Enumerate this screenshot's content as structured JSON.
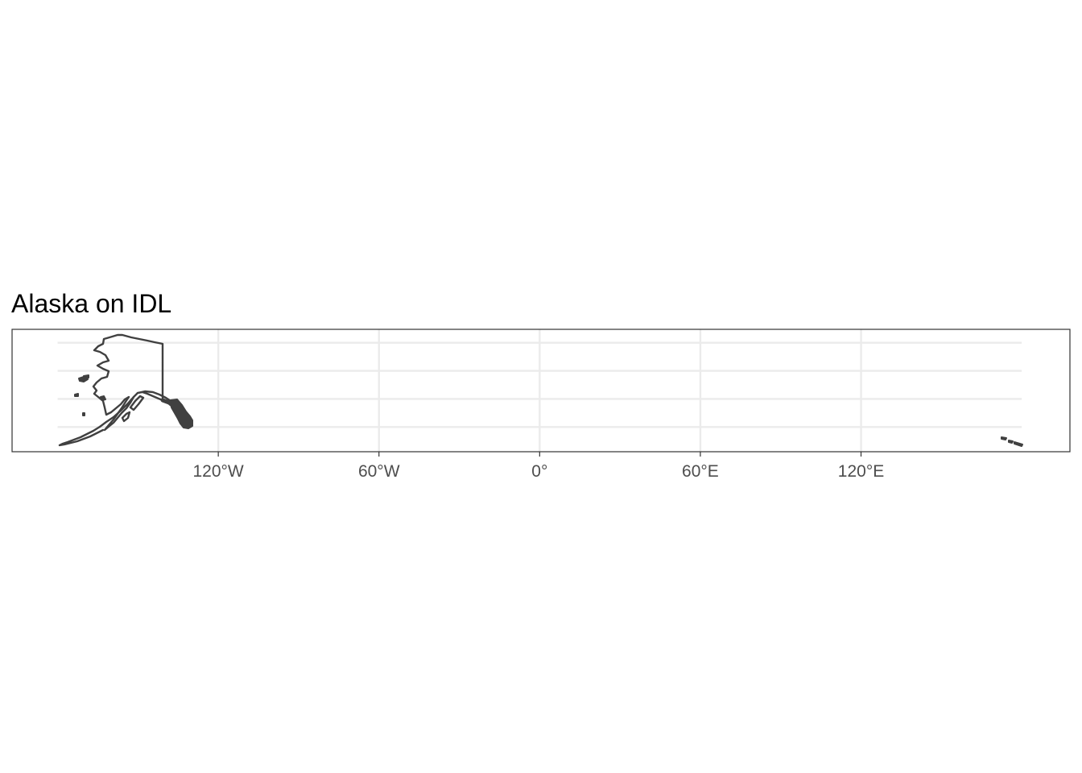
{
  "title": "Alaska on IDL",
  "chart_data": {
    "type": "map",
    "title": "Alaska on IDL",
    "xlabel": "",
    "ylabel": "",
    "x_ticks": [
      {
        "value": -120,
        "label": "120°W"
      },
      {
        "value": -60,
        "label": "60°W"
      },
      {
        "value": 0,
        "label": "0°"
      },
      {
        "value": 60,
        "label": "60°E"
      },
      {
        "value": 120,
        "label": "120°E"
      }
    ],
    "xlim": [
      -197,
      198
    ],
    "ylim": [
      50.6,
      72.4
    ],
    "lat_gridlines": [
      55,
      60,
      65,
      70
    ],
    "grid": true,
    "legend": "none",
    "features": [
      {
        "name": "Alaska",
        "type": "polygon-outline"
      },
      {
        "name": "Western Aleutian Islands",
        "type": "island-fragments"
      }
    ],
    "colors": {
      "outline": "#404040",
      "grid": "#ebebeb",
      "panel_border": "#333333",
      "tick_label": "#4d4d4d"
    }
  }
}
